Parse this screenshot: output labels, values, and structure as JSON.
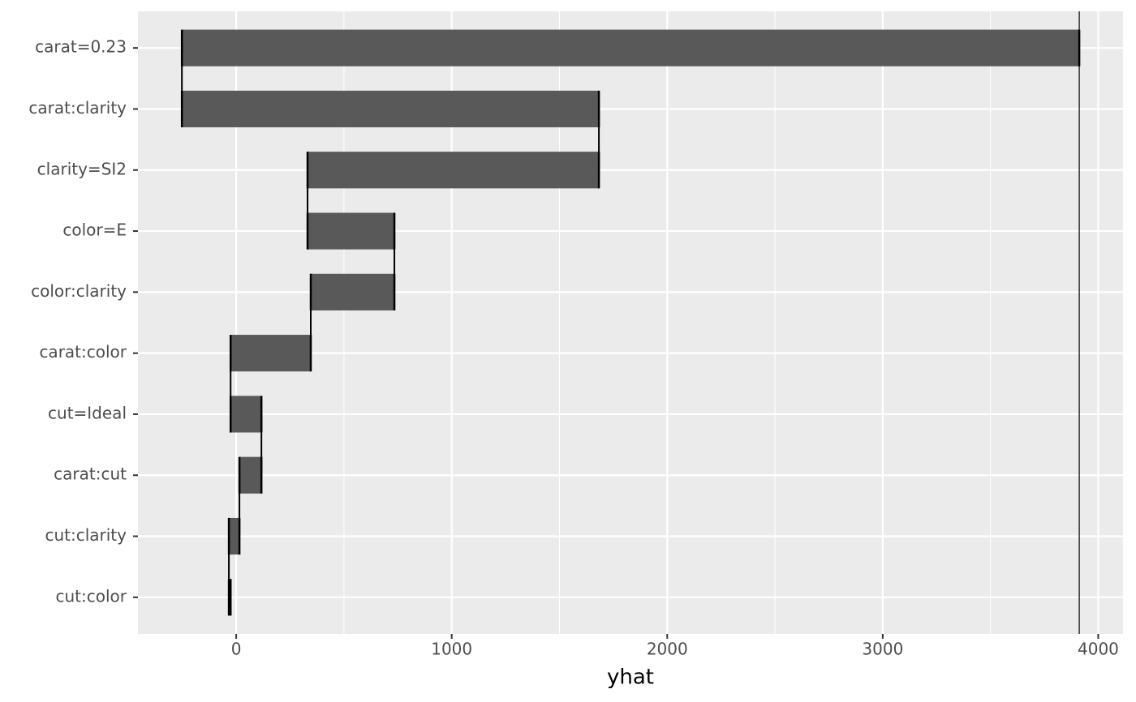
{
  "chart_data": {
    "type": "breakdown",
    "x_label": "yhat",
    "intercept": 3912,
    "categories": [
      "carat=0.23",
      "carat:clarity",
      "clarity=SI2",
      "color=E",
      "color:clarity",
      "carat:color",
      "cut=Ideal",
      "carat:cut",
      "cut:clarity",
      "cut:color"
    ],
    "values": [
      -4164,
      1935,
      -1352,
      403,
      -388,
      -372,
      143,
      -102,
      -49,
      8
    ],
    "color": "#595959",
    "xlim": [
      -456,
      4115
    ],
    "xticks": [
      0,
      1000,
      2000,
      3000,
      4000
    ],
    "x_minor_grid": [
      500,
      1500,
      2500,
      3500
    ],
    "grid": true
  }
}
